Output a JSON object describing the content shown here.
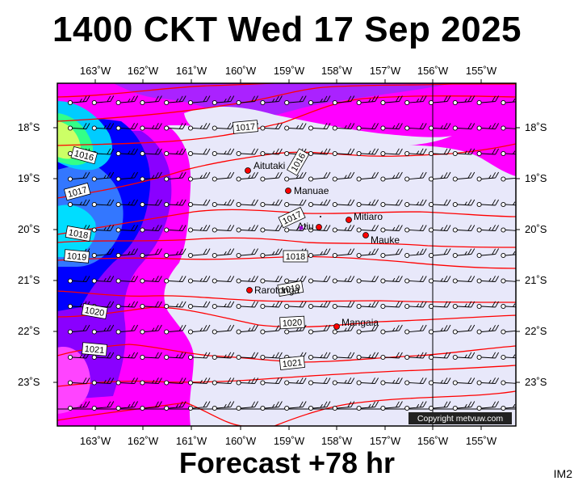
{
  "title": "1400 CKT Wed 17 Sep 2025",
  "footer": "Forecast +78 hr",
  "corner_label": "IM2",
  "copyright": "Copyright metvuw.com",
  "lon_labels": [
    "163˚W",
    "162˚W",
    "161˚W",
    "160˚W",
    "159˚W",
    "158˚W",
    "157˚W",
    "156˚W",
    "155˚W"
  ],
  "lat_labels": [
    "18˚S",
    "19˚S",
    "20˚S",
    "21˚S",
    "22˚S",
    "23˚S"
  ],
  "islands": [
    {
      "name": "Aitutaki"
    },
    {
      "name": "Manuae"
    },
    {
      "name": "Atiu"
    },
    {
      "name": "Mitiaro"
    },
    {
      "name": "Mauke"
    },
    {
      "name": "Rarotonga"
    },
    {
      "name": "Mangaia"
    }
  ],
  "isobar_labels": [
    "1016",
    "1017",
    "1018",
    "1019",
    "1020",
    "1021"
  ],
  "colors": {
    "background_low": "#e8e8fa",
    "magenta": "#ff00ff",
    "violet": "#9900ff",
    "blue": "#0000ff",
    "cyan": "#00ffff",
    "green": "#33ff66",
    "yellow": "#ffff66",
    "isobar": "#ff0000",
    "island": "#ff0000"
  }
}
